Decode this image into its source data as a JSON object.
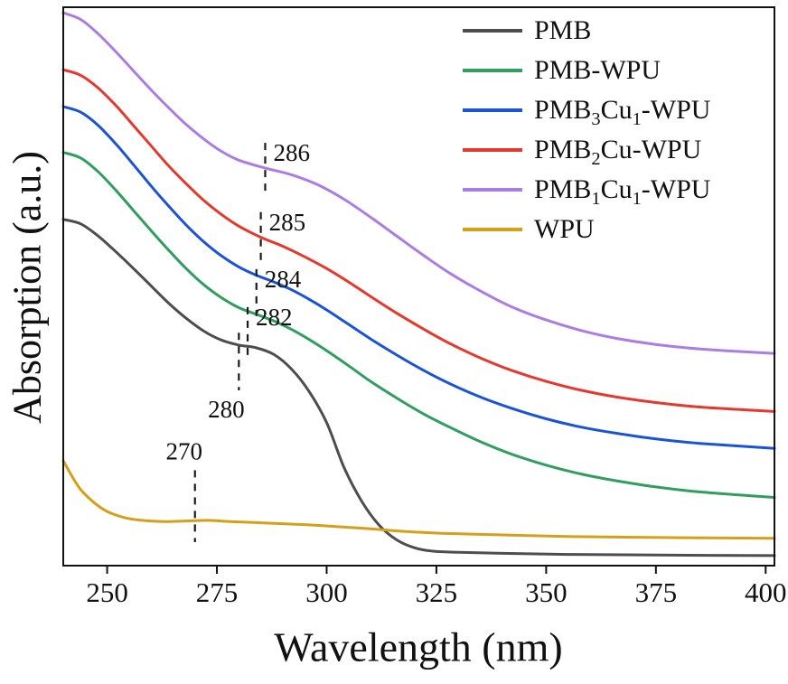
{
  "figure": {
    "xlabel": "Wavelength (nm)",
    "ylabel": "Absorption (a.u.)",
    "background": "#ffffff",
    "frame_color": "#111111"
  },
  "chart_data": {
    "type": "line",
    "title": "",
    "xlabel": "Wavelength (nm)",
    "ylabel": "Absorption (a.u.)",
    "x_range": [
      240,
      402
    ],
    "x_ticks": [
      250,
      275,
      300,
      325,
      350,
      375,
      400
    ],
    "y_axis": "arbitrary units (no ticks)",
    "grid": false,
    "legend_position": "top-right-inside",
    "series": [
      {
        "name": "PMB",
        "label_parts": [
          {
            "t": "PMB"
          }
        ],
        "color": "#4d4d4d",
        "points": [
          [
            240,
            0.62
          ],
          [
            244,
            0.612
          ],
          [
            248,
            0.59
          ],
          [
            252,
            0.562
          ],
          [
            256,
            0.532
          ],
          [
            260,
            0.501
          ],
          [
            264,
            0.47
          ],
          [
            268,
            0.443
          ],
          [
            272,
            0.42
          ],
          [
            276,
            0.404
          ],
          [
            280,
            0.395
          ],
          [
            284,
            0.39
          ],
          [
            288,
            0.378
          ],
          [
            292,
            0.352
          ],
          [
            296,
            0.312
          ],
          [
            300,
            0.256
          ],
          [
            304,
            0.175
          ],
          [
            308,
            0.115
          ],
          [
            312,
            0.072
          ],
          [
            316,
            0.046
          ],
          [
            320,
            0.032
          ],
          [
            324,
            0.026
          ],
          [
            330,
            0.024
          ],
          [
            340,
            0.022
          ],
          [
            355,
            0.02
          ],
          [
            375,
            0.019
          ],
          [
            402,
            0.018
          ]
        ]
      },
      {
        "name": "PMB-WPU",
        "label_parts": [
          {
            "t": "PMB-WPU"
          }
        ],
        "color": "#2f9e5e",
        "points": [
          [
            240,
            0.74
          ],
          [
            244,
            0.73
          ],
          [
            248,
            0.705
          ],
          [
            252,
            0.672
          ],
          [
            256,
            0.636
          ],
          [
            260,
            0.6
          ],
          [
            264,
            0.565
          ],
          [
            268,
            0.532
          ],
          [
            272,
            0.503
          ],
          [
            276,
            0.48
          ],
          [
            280,
            0.462
          ],
          [
            284,
            0.45
          ],
          [
            288,
            0.438
          ],
          [
            292,
            0.423
          ],
          [
            296,
            0.405
          ],
          [
            300,
            0.385
          ],
          [
            305,
            0.358
          ],
          [
            310,
            0.33
          ],
          [
            316,
            0.3
          ],
          [
            322,
            0.272
          ],
          [
            328,
            0.248
          ],
          [
            335,
            0.222
          ],
          [
            342,
            0.2
          ],
          [
            350,
            0.18
          ],
          [
            358,
            0.164
          ],
          [
            366,
            0.152
          ],
          [
            375,
            0.141
          ],
          [
            385,
            0.132
          ],
          [
            402,
            0.122
          ]
        ]
      },
      {
        "name": "PMB3Cu1-WPU",
        "label_parts": [
          {
            "t": "PMB"
          },
          {
            "t": "3",
            "sub": true
          },
          {
            "t": "Cu"
          },
          {
            "t": "1",
            "sub": true
          },
          {
            "t": "-WPU"
          }
        ],
        "color": "#1a53d8",
        "points": [
          [
            240,
            0.822
          ],
          [
            244,
            0.812
          ],
          [
            248,
            0.788
          ],
          [
            252,
            0.755
          ],
          [
            256,
            0.718
          ],
          [
            260,
            0.68
          ],
          [
            264,
            0.644
          ],
          [
            268,
            0.61
          ],
          [
            272,
            0.58
          ],
          [
            276,
            0.555
          ],
          [
            280,
            0.535
          ],
          [
            284,
            0.52
          ],
          [
            288,
            0.508
          ],
          [
            292,
            0.494
          ],
          [
            296,
            0.477
          ],
          [
            300,
            0.458
          ],
          [
            305,
            0.432
          ],
          [
            310,
            0.406
          ],
          [
            316,
            0.377
          ],
          [
            322,
            0.35
          ],
          [
            328,
            0.326
          ],
          [
            335,
            0.302
          ],
          [
            342,
            0.282
          ],
          [
            350,
            0.263
          ],
          [
            358,
            0.248
          ],
          [
            366,
            0.237
          ],
          [
            375,
            0.227
          ],
          [
            385,
            0.219
          ],
          [
            402,
            0.21
          ]
        ]
      },
      {
        "name": "PMB2Cu-WPU",
        "label_parts": [
          {
            "t": "PMB"
          },
          {
            "t": "2",
            "sub": true
          },
          {
            "t": "Cu-WPU"
          }
        ],
        "color": "#e6382c",
        "points": [
          [
            240,
            0.888
          ],
          [
            244,
            0.878
          ],
          [
            248,
            0.855
          ],
          [
            252,
            0.824
          ],
          [
            256,
            0.788
          ],
          [
            260,
            0.752
          ],
          [
            264,
            0.716
          ],
          [
            268,
            0.684
          ],
          [
            272,
            0.654
          ],
          [
            276,
            0.629
          ],
          [
            280,
            0.608
          ],
          [
            285,
            0.588
          ],
          [
            290,
            0.572
          ],
          [
            295,
            0.553
          ],
          [
            300,
            0.532
          ],
          [
            305,
            0.508
          ],
          [
            310,
            0.482
          ],
          [
            316,
            0.452
          ],
          [
            322,
            0.424
          ],
          [
            328,
            0.398
          ],
          [
            335,
            0.372
          ],
          [
            342,
            0.35
          ],
          [
            350,
            0.33
          ],
          [
            358,
            0.314
          ],
          [
            366,
            0.302
          ],
          [
            375,
            0.292
          ],
          [
            385,
            0.284
          ],
          [
            402,
            0.276
          ]
        ]
      },
      {
        "name": "PMB1Cu1-WPU",
        "label_parts": [
          {
            "t": "PMB"
          },
          {
            "t": "1",
            "sub": true
          },
          {
            "t": "Cu"
          },
          {
            "t": "1",
            "sub": true
          },
          {
            "t": "-WPU"
          }
        ],
        "color": "#ab7de4",
        "points": [
          [
            240,
            0.99
          ],
          [
            244,
            0.978
          ],
          [
            248,
            0.952
          ],
          [
            252,
            0.92
          ],
          [
            256,
            0.886
          ],
          [
            260,
            0.852
          ],
          [
            264,
            0.82
          ],
          [
            268,
            0.79
          ],
          [
            272,
            0.764
          ],
          [
            276,
            0.742
          ],
          [
            280,
            0.726
          ],
          [
            286,
            0.712
          ],
          [
            292,
            0.7
          ],
          [
            298,
            0.682
          ],
          [
            304,
            0.656
          ],
          [
            310,
            0.624
          ],
          [
            316,
            0.59
          ],
          [
            322,
            0.556
          ],
          [
            328,
            0.524
          ],
          [
            335,
            0.492
          ],
          [
            342,
            0.464
          ],
          [
            350,
            0.44
          ],
          [
            358,
            0.421
          ],
          [
            366,
            0.407
          ],
          [
            375,
            0.396
          ],
          [
            385,
            0.388
          ],
          [
            402,
            0.38
          ]
        ]
      },
      {
        "name": "WPU",
        "label_parts": [
          {
            "t": "WPU"
          }
        ],
        "color": "#d5a018",
        "points": [
          [
            240,
            0.188
          ],
          [
            242,
            0.16
          ],
          [
            244,
            0.136
          ],
          [
            247,
            0.113
          ],
          [
            250,
            0.097
          ],
          [
            254,
            0.086
          ],
          [
            258,
            0.081
          ],
          [
            263,
            0.079
          ],
          [
            268,
            0.08
          ],
          [
            273,
            0.081
          ],
          [
            278,
            0.079
          ],
          [
            284,
            0.077
          ],
          [
            290,
            0.075
          ],
          [
            296,
            0.073
          ],
          [
            302,
            0.07
          ],
          [
            310,
            0.066
          ],
          [
            318,
            0.061
          ],
          [
            326,
            0.058
          ],
          [
            335,
            0.056
          ],
          [
            345,
            0.054
          ],
          [
            356,
            0.052
          ],
          [
            368,
            0.051
          ],
          [
            382,
            0.05
          ],
          [
            402,
            0.049
          ]
        ]
      }
    ],
    "annotations": [
      {
        "label": "286",
        "x": 286,
        "y_top": 0.757,
        "y_bot": 0.67,
        "label_pos": "right"
      },
      {
        "label": "285",
        "x": 285,
        "y_top": 0.633,
        "y_bot": 0.54,
        "label_pos": "right"
      },
      {
        "label": "284",
        "x": 284,
        "y_top": 0.531,
        "y_bot": 0.447,
        "label_pos": "right"
      },
      {
        "label": "282",
        "x": 282,
        "y_top": 0.463,
        "y_bot": 0.377,
        "label_pos": "right"
      },
      {
        "label": "280",
        "x": 280,
        "y_top": 0.417,
        "y_bot": 0.314,
        "label_pos": "below"
      },
      {
        "label": "270",
        "x": 270,
        "y_top": 0.171,
        "y_bot": 0.042,
        "label_pos": "above"
      }
    ]
  }
}
